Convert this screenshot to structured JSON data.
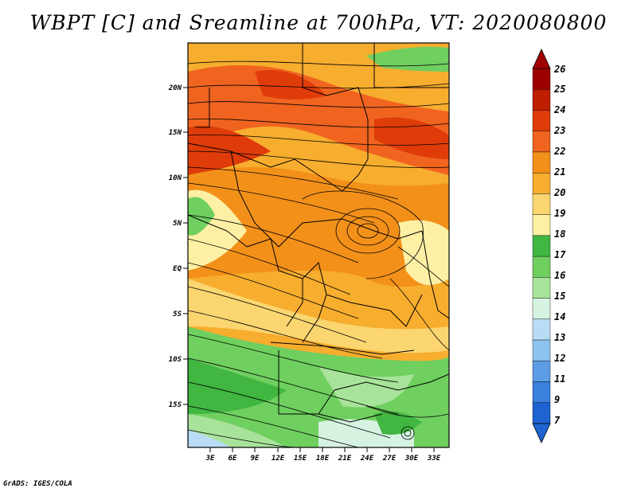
{
  "title": "WBPT [C] and Sreamline at 700hPa, VT: 2020080800",
  "footer": "GrADS: IGES/COLA",
  "map": {
    "lat_labels": [
      "20N",
      "15N",
      "10N",
      "5N",
      "EQ",
      "5S",
      "10S",
      "15S"
    ],
    "lon_labels": [
      "3E",
      "6E",
      "9E",
      "12E",
      "15E",
      "18E",
      "21E",
      "24E",
      "27E",
      "30E",
      "33E"
    ]
  },
  "colorbar": {
    "labels": [
      "26",
      "25",
      "24",
      "23",
      "22",
      "21",
      "20",
      "19",
      "18",
      "17",
      "16",
      "15",
      "14",
      "13",
      "12",
      "11",
      "9",
      "7"
    ],
    "colors": [
      "#9e0000",
      "#c01e00",
      "#e03c0a",
      "#f06420",
      "#f2901a",
      "#f7ad2e",
      "#fbd670",
      "#fdf0a4",
      "#41b641",
      "#6fcf5f",
      "#a8e39a",
      "#d6f3e2",
      "#b9dcf6",
      "#8fc3ef",
      "#5d9de6",
      "#3a80dd",
      "#1e63d1"
    ],
    "top_color": "#9e0000",
    "bottom_color": "#1e63d1"
  },
  "fields": {
    "legend_cyclone_note": ""
  }
}
